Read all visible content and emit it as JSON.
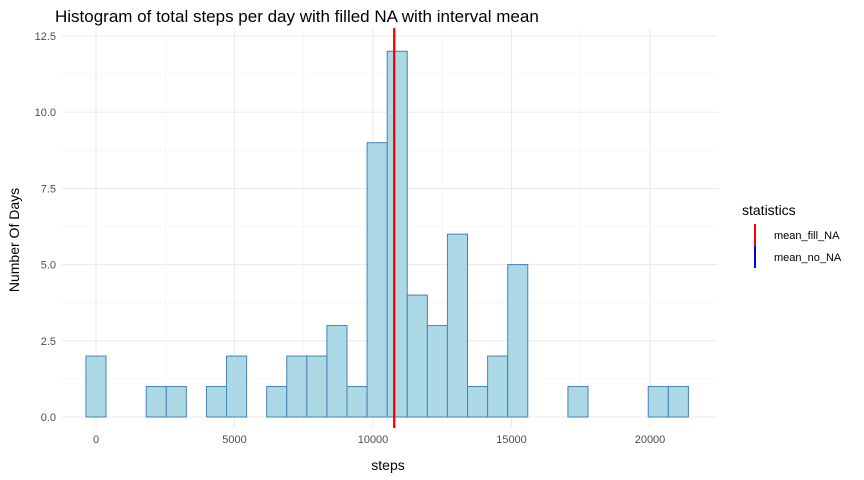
{
  "chart_data": {
    "type": "bar",
    "title": "Histogram of total steps per day with filled NA with interval mean",
    "xlabel": "steps",
    "ylabel": "Number Of Days",
    "xlim": [
      -1000,
      22000
    ],
    "ylim": [
      0,
      12.5
    ],
    "x_ticks": [
      0,
      5000,
      10000,
      15000,
      20000
    ],
    "x_tick_labels": [
      "0",
      "5000",
      "10000",
      "15000",
      "20000"
    ],
    "y_ticks": [
      0,
      2.5,
      5,
      7.5,
      10,
      12.5
    ],
    "y_tick_labels": [
      "0.0",
      "2.5",
      "5.0",
      "7.5",
      "10.0",
      "12.5"
    ],
    "bin_width": 725,
    "bin_start": -363,
    "values": [
      2,
      0,
      0,
      1,
      1,
      0,
      1,
      2,
      0,
      1,
      2,
      2,
      3,
      1,
      9,
      12,
      4,
      3,
      6,
      1,
      2,
      5,
      0,
      0,
      1,
      0,
      0,
      0,
      1,
      1
    ],
    "fill_color": "#ADD8E6",
    "edge_color": "#4682B4",
    "grid": true,
    "vlines": [
      {
        "name": "mean_fill_NA",
        "x": 10766,
        "color": "#FF0000"
      },
      {
        "name": "mean_no_NA",
        "x": 10766,
        "color": "#0000FF"
      }
    ],
    "legend": {
      "title": "statistics",
      "position": "right",
      "entries": [
        "mean_fill_NA",
        "mean_no_NA"
      ]
    }
  }
}
